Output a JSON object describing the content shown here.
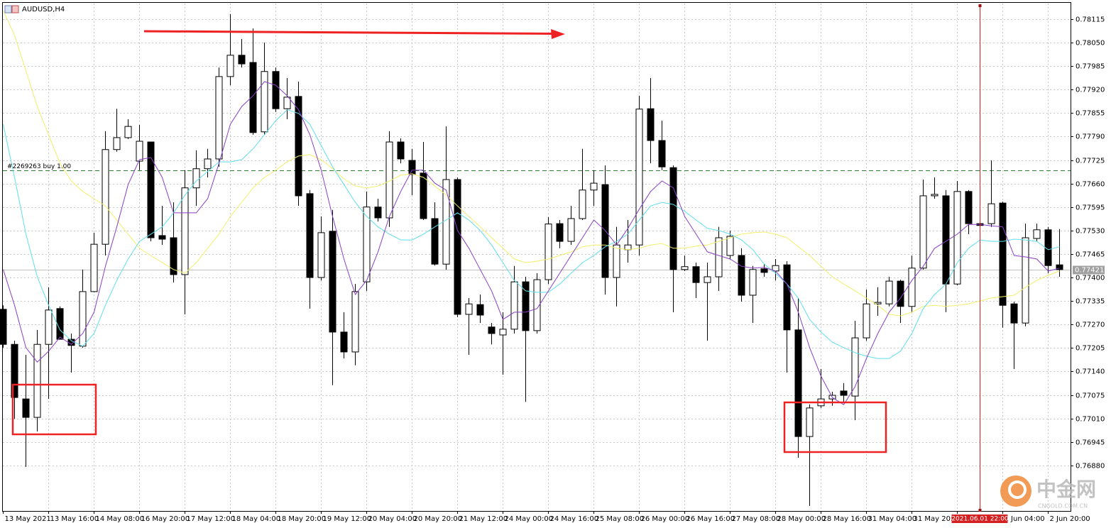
{
  "chart_data": {
    "type": "candlestick",
    "title": "AUDUSD,H4",
    "up_color": "#ffffff",
    "down_color": "#000000",
    "grid": true,
    "ylim": [
      0.76754,
      0.78158
    ],
    "yticks": [
      0.78115,
      {
        "value": 0.7805,
        "label": "0.78050"
      },
      0.77985,
      {
        "value": 0.7792,
        "label": "0.77920"
      },
      0.77855,
      {
        "value": 0.7779,
        "label": "0.77790"
      },
      0.77725,
      {
        "value": 0.7766,
        "label": "0.77660"
      },
      0.77595,
      {
        "value": 0.7753,
        "label": "0.77530"
      },
      0.77465,
      {
        "value": 0.774,
        "label": "0.77400"
      },
      0.77335,
      {
        "value": 0.7727,
        "label": "0.77270"
      },
      0.77205,
      {
        "value": 0.7714,
        "label": "0.77140"
      },
      0.77075,
      {
        "value": 0.7701,
        "label": "0.77010"
      },
      0.76945,
      {
        "value": 0.7688,
        "label": "0.76880"
      }
    ],
    "categories": [
      "13 May 2021",
      null,
      null,
      null,
      "13 May 16:00",
      null,
      null,
      null,
      "14 May 08:00",
      null,
      null,
      null,
      "16 May 20:00",
      null,
      null,
      null,
      "17 May 12:00",
      null,
      null,
      null,
      "18 May 04:00",
      null,
      null,
      null,
      "18 May 20:00",
      null,
      null,
      null,
      "19 May 12:00",
      null,
      null,
      null,
      "20 May 04:00",
      null,
      null,
      null,
      "20 May 20:00",
      null,
      null,
      null,
      "21 May 12:00",
      null,
      null,
      null,
      "24 May 00:00",
      null,
      null,
      null,
      "24 May 16:00",
      null,
      null,
      null,
      "25 May 08:00",
      null,
      null,
      null,
      "26 May 00:00",
      null,
      null,
      null,
      "26 May 16:00",
      null,
      null,
      null,
      "27 May 08:00",
      null,
      null,
      null,
      "28 May 00:00",
      null,
      null,
      null,
      "28 May 16:00",
      null,
      null,
      null,
      "31 May 04:00",
      null,
      null,
      null,
      "31 May 20:00",
      null,
      null,
      null,
      null,
      null,
      null,
      null,
      "2 Jun 04:00",
      null,
      null,
      null,
      "2 Jun 20:00",
      null
    ],
    "open": [
      0.77312,
      0.77215,
      0.77064,
      0.77013,
      0.77215,
      0.77314,
      0.77229,
      0.7721,
      0.77361,
      0.77492,
      0.77754,
      0.77787,
      0.77722,
      0.77775,
      0.77516,
      0.7751,
      0.77408,
      0.77648,
      0.77701,
      0.77728,
      0.77956,
      0.78015,
      0.77995,
      0.77803,
      0.7797,
      0.77867,
      0.77901,
      0.77632,
      0.774,
      0.77528,
      0.77249,
      0.77194,
      0.77388,
      0.77595,
      0.77565,
      0.77775,
      0.77724,
      0.77689,
      0.77563,
      0.77437,
      0.77671,
      0.77298,
      0.77325,
      0.77263,
      0.77241,
      0.77257,
      0.77388,
      0.77253,
      0.77394,
      0.77549,
      0.775,
      0.77563,
      0.77642,
      0.77657,
      0.774,
      0.77477,
      0.7749,
      0.77867,
      0.77779,
      0.77704,
      0.77422,
      0.7743,
      0.77386,
      0.77402,
      0.77461,
      0.77461,
      0.77351,
      0.77424,
      0.77418,
      0.77435,
      0.77255,
      0.7696,
      0.77045,
      0.77064,
      0.77086,
      0.77072,
      0.77233,
      0.77327,
      0.77327,
      0.7739,
      0.7732,
      0.77426,
      0.77626,
      0.77626,
      0.77382,
      0.77638,
      0.77549,
      0.77549,
      0.77606,
      0.77327,
      0.77274,
      0.77508,
      0.77532,
      0.77435
    ],
    "high": [
      0.77323,
      0.77225,
      0.77186,
      0.77255,
      0.77373,
      0.7732,
      0.77245,
      0.77422,
      0.77524,
      0.77805,
      0.77867,
      0.77838,
      0.77822,
      0.77775,
      0.77598,
      0.77608,
      0.77697,
      0.77752,
      0.77756,
      0.77981,
      0.78129,
      0.7806,
      0.78089,
      0.7805,
      0.77981,
      0.77952,
      0.77942,
      0.77642,
      0.77569,
      0.77587,
      0.77304,
      0.77382,
      0.77638,
      0.77618,
      0.77805,
      0.77785,
      0.77756,
      0.77775,
      0.77608,
      0.77818,
      0.77677,
      0.77343,
      0.77353,
      0.77274,
      0.77304,
      0.77432,
      0.77402,
      0.77412,
      0.77567,
      0.77559,
      0.77598,
      0.77756,
      0.77697,
      0.7771,
      0.7754,
      0.77559,
      0.77903,
      0.77952,
      0.77834,
      0.7771,
      0.77461,
      0.77441,
      0.77441,
      0.7754,
      0.7753,
      0.77481,
      0.77432,
      0.77437,
      0.77451,
      0.77445,
      0.77343,
      0.77049,
      0.77147,
      0.77084,
      0.77108,
      0.7728,
      0.77367,
      0.77373,
      0.77402,
      0.77394,
      0.77461,
      0.77671,
      0.77677,
      0.77642,
      0.77667,
      0.77642,
      0.77579,
      0.77724,
      0.7761,
      0.77333,
      0.77549,
      0.77549,
      0.7754,
      0.77534
    ],
    "low": [
      0.77206,
      0.77009,
      0.76876,
      0.76974,
      0.77064,
      0.77229,
      0.77137,
      0.77206,
      0.77359,
      0.77461,
      0.77748,
      0.77783,
      0.77697,
      0.775,
      0.7749,
      0.77386,
      0.77298,
      0.77598,
      0.77677,
      0.77706,
      0.77932,
      0.77981,
      0.77795,
      0.77795,
      0.77858,
      0.77838,
      0.77598,
      0.77314,
      0.77392,
      0.77102,
      0.77176,
      0.77157,
      0.77363,
      0.77555,
      0.7754,
      0.77716,
      0.77628,
      0.77559,
      0.77433,
      0.77422,
      0.7729,
      0.77186,
      0.77274,
      0.77215,
      0.77131,
      0.77245,
      0.77056,
      0.77245,
      0.77382,
      0.77481,
      0.7749,
      0.77559,
      0.77598,
      0.77353,
      0.7732,
      0.77441,
      0.77461,
      0.77716,
      0.77697,
      0.77304,
      0.77418,
      0.77343,
      0.77225,
      0.77363,
      0.77451,
      0.77333,
      0.77274,
      0.77402,
      0.77392,
      0.77137,
      0.76901,
      0.76768,
      0.77039,
      0.77045,
      0.77052,
      0.77005,
      0.77225,
      0.77294,
      0.7732,
      0.77274,
      0.77304,
      0.77422,
      0.77618,
      0.77304,
      0.77378,
      0.7752,
      0.7754,
      0.7754,
      0.77261,
      0.77147,
      0.77265,
      0.775,
      0.77412,
      0.77402
    ],
    "close": [
      0.77215,
      0.77068,
      0.77013,
      0.77215,
      0.7731,
      0.77229,
      0.77212,
      0.77361,
      0.77492,
      0.77754,
      0.77787,
      0.77818,
      0.77777,
      0.7751,
      0.77506,
      0.77408,
      0.77648,
      0.77701,
      0.77728,
      0.77956,
      0.78015,
      0.77991,
      0.77801,
      0.7797,
      0.77867,
      0.77899,
      0.77626,
      0.774,
      0.77524,
      0.77249,
      0.77194,
      0.77361,
      0.77595,
      0.77565,
      0.77775,
      0.77728,
      0.77685,
      0.77563,
      0.77437,
      0.77671,
      0.77298,
      0.77327,
      0.77296,
      0.77245,
      0.77257,
      0.77388,
      0.77253,
      0.77394,
      0.77548,
      0.775,
      0.77563,
      0.77642,
      0.77661,
      0.774,
      0.7749,
      0.7749,
      0.77866,
      0.77779,
      0.77706,
      0.77422,
      0.7743,
      0.77386,
      0.77402,
      0.7751,
      0.77514,
      0.77351,
      0.77422,
      0.77414,
      0.77433,
      0.77255,
      0.7696,
      0.77039,
      0.77064,
      0.77074,
      0.77074,
      0.77233,
      0.77327,
      0.77331,
      0.7739,
      0.7732,
      0.77426,
      0.77626,
      0.7763,
      0.77382,
      0.77638,
      0.77549,
      0.77544,
      0.77604,
      0.77323,
      0.77274,
      0.7751,
      0.77532,
      0.77433,
      0.77422
    ],
    "lines": [
      {
        "color": "#f3ee6a",
        "values": [
          0.78139,
          0.7807,
          0.77972,
          0.77873,
          0.77795,
          0.77716,
          0.77667,
          0.77638,
          0.77618,
          0.77598,
          0.77559,
          0.7752,
          0.77481,
          0.77461,
          0.77441,
          0.77422,
          0.77412,
          0.77441,
          0.77481,
          0.7752,
          0.77569,
          0.77608,
          0.77648,
          0.77677,
          0.77697,
          0.7772,
          0.77736,
          0.7774,
          0.77726,
          0.77701,
          0.77673,
          0.77653,
          0.77648,
          0.77653,
          0.77667,
          0.77683,
          0.77687,
          0.77677,
          0.77653,
          0.77628,
          0.77598,
          0.77569,
          0.7754,
          0.7751,
          0.77481,
          0.77451,
          0.77441,
          0.77445,
          0.77451,
          0.77461,
          0.77471,
          0.77485,
          0.7749,
          0.7749,
          0.77481,
          0.77477,
          0.77481,
          0.7749,
          0.77494,
          0.77481,
          0.77481,
          0.77487,
          0.7749,
          0.775,
          0.7751,
          0.7752,
          0.77524,
          0.77526,
          0.7752,
          0.7751,
          0.77485,
          0.77461,
          0.77431,
          0.77402,
          0.77382,
          0.77363,
          0.77343,
          0.77323,
          0.77298,
          0.77294,
          0.77304,
          0.7732,
          0.77323,
          0.7732,
          0.77323,
          0.77327,
          0.77335,
          0.77343,
          0.77347,
          0.77351,
          0.77373,
          0.77392,
          0.77406,
          0.77418
        ]
      },
      {
        "color": "#5fdfec",
        "values": [
          0.77824,
          0.77677,
          0.7752,
          0.77402,
          0.77323,
          0.77255,
          0.77225,
          0.7721,
          0.77245,
          0.77323,
          0.77392,
          0.77451,
          0.775,
          0.7752,
          0.7754,
          0.77579,
          0.77628,
          0.77667,
          0.77693,
          0.7772,
          0.7772,
          0.77726,
          0.77756,
          0.77795,
          0.77834,
          0.77864,
          0.77854,
          0.77824,
          0.77765,
          0.77706,
          0.77657,
          0.77608,
          0.77569,
          0.7754,
          0.7752,
          0.77504,
          0.77504,
          0.7752,
          0.7754,
          0.77559,
          0.77579,
          0.77559,
          0.7753,
          0.7749,
          0.77441,
          0.77392,
          0.77363,
          0.77359,
          0.77359,
          0.77382,
          0.77412,
          0.77441,
          0.77461,
          0.77485,
          0.775,
          0.7752,
          0.77559,
          0.77598,
          0.77608,
          0.77602,
          0.77583,
          0.77559,
          0.77536,
          0.7753,
          0.7752,
          0.77504,
          0.77477,
          0.77437,
          0.77412,
          0.77382,
          0.77343,
          0.77284,
          0.77249,
          0.77221,
          0.77206,
          0.77192,
          0.77182,
          0.77176,
          0.77176,
          0.77196,
          0.77245,
          0.77314,
          0.77353,
          0.77382,
          0.77441,
          0.77481,
          0.77504,
          0.775,
          0.775,
          0.77506,
          0.77504,
          0.775,
          0.77477,
          0.77485
        ]
      },
      {
        "color": "#8a3fc4",
        "values": [
          0.77422,
          0.77323,
          0.77206,
          0.77166,
          0.77196,
          0.77235,
          0.77215,
          0.77245,
          0.77304,
          0.77431,
          0.7754,
          0.77657,
          0.77726,
          0.77732,
          0.77677,
          0.77579,
          0.77579,
          0.77579,
          0.77618,
          0.77716,
          0.77824,
          0.77873,
          0.77903,
          0.77942,
          0.77932,
          0.77903,
          0.77864,
          0.77795,
          0.77697,
          0.77569,
          0.77451,
          0.77353,
          0.77392,
          0.77471,
          0.77569,
          0.77638,
          0.77697,
          0.77697,
          0.77661,
          0.77642,
          0.7753,
          0.77481,
          0.77422,
          0.77363,
          0.77284,
          0.77304,
          0.77304,
          0.77314,
          0.77363,
          0.77412,
          0.77461,
          0.7751,
          0.77559,
          0.7753,
          0.7749,
          0.77536,
          0.77589,
          0.77638,
          0.77667,
          0.77648,
          0.77569,
          0.7752,
          0.77471,
          0.77461,
          0.77451,
          0.77431,
          0.77426,
          0.77428,
          0.77418,
          0.77382,
          0.77304,
          0.77206,
          0.77127,
          0.77068,
          0.77048,
          0.77098,
          0.77176,
          0.77245,
          0.77304,
          0.77343,
          0.77392,
          0.77431,
          0.77481,
          0.775,
          0.7752,
          0.77547,
          0.77547,
          0.77543,
          0.7754,
          0.77461,
          0.77457,
          0.77451,
          0.77418,
          0.77426
        ]
      }
    ],
    "bid": 0.77421,
    "trade_line": {
      "label": "#2269263 buy 1.00",
      "value": 0.77697,
      "color": "#2e7d32"
    },
    "crosshair_label": "2021.06.01 22:00",
    "watermark": {
      "title": "中金网",
      "subtitle": "CNGOLD.COM.CN"
    }
  }
}
